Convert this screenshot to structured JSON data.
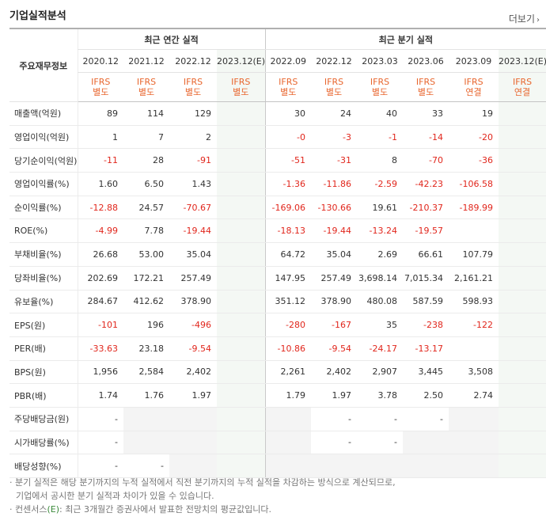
{
  "section_title": "기업실적분석",
  "more_label": "더보기",
  "more_arrow": "›",
  "header": {
    "row_label": "주요재무정보",
    "annual_group": "최근 연간 실적",
    "quarter_group": "최근 분기 실적",
    "periods": [
      "2020.12",
      "2021.12",
      "2022.12",
      "2023.12(E)",
      "2022.09",
      "2022.12",
      "2023.03",
      "2023.06",
      "2023.09",
      "2023.12(E)"
    ],
    "standards_top": [
      "IFRS",
      "IFRS",
      "IFRS",
      "IFRS",
      "IFRS",
      "IFRS",
      "IFRS",
      "IFRS",
      "IFRS",
      "IFRS"
    ],
    "standards_bottom": [
      "별도",
      "별도",
      "별도",
      "별도",
      "별도",
      "별도",
      "별도",
      "별도",
      "연결",
      "연결"
    ]
  },
  "rows": [
    {
      "label": "매출액(억원)",
      "values": [
        "89",
        "114",
        "129",
        "",
        "30",
        "24",
        "40",
        "33",
        "19",
        ""
      ]
    },
    {
      "label": "영업이익(억원)",
      "values": [
        "1",
        "7",
        "2",
        "",
        "-0",
        "-3",
        "-1",
        "-14",
        "-20",
        ""
      ]
    },
    {
      "label": "당기순이익(억원)",
      "values": [
        "-11",
        "28",
        "-91",
        "",
        "-51",
        "-31",
        "8",
        "-70",
        "-36",
        ""
      ]
    },
    {
      "label": "영업이익률(%)",
      "values": [
        "1.60",
        "6.50",
        "1.43",
        "",
        "-1.36",
        "-11.86",
        "-2.59",
        "-42.23",
        "-106.58",
        ""
      ]
    },
    {
      "label": "순이익률(%)",
      "values": [
        "-12.88",
        "24.57",
        "-70.67",
        "",
        "-169.06",
        "-130.66",
        "19.61",
        "-210.37",
        "-189.99",
        ""
      ]
    },
    {
      "label": "ROE(%)",
      "values": [
        "-4.99",
        "7.78",
        "-19.44",
        "",
        "-18.13",
        "-19.44",
        "-13.24",
        "-19.57",
        "",
        ""
      ]
    },
    {
      "label": "부채비율(%)",
      "values": [
        "26.68",
        "53.00",
        "35.04",
        "",
        "64.72",
        "35.04",
        "2.69",
        "66.61",
        "107.79",
        ""
      ]
    },
    {
      "label": "당좌비율(%)",
      "values": [
        "202.69",
        "172.21",
        "257.49",
        "",
        "147.95",
        "257.49",
        "3,698.14",
        "7,015.34",
        "2,161.21",
        ""
      ]
    },
    {
      "label": "유보율(%)",
      "values": [
        "284.67",
        "412.62",
        "378.90",
        "",
        "351.12",
        "378.90",
        "480.08",
        "587.59",
        "598.93",
        ""
      ]
    },
    {
      "label": "EPS(원)",
      "values": [
        "-101",
        "196",
        "-496",
        "",
        "-280",
        "-167",
        "35",
        "-238",
        "-122",
        ""
      ]
    },
    {
      "label": "PER(배)",
      "values": [
        "-33.63",
        "23.18",
        "-9.54",
        "",
        "-10.86",
        "-9.54",
        "-24.17",
        "-13.17",
        "",
        ""
      ]
    },
    {
      "label": "BPS(원)",
      "values": [
        "1,956",
        "2,584",
        "2,402",
        "",
        "2,261",
        "2,402",
        "2,907",
        "3,445",
        "3,508",
        ""
      ]
    },
    {
      "label": "PBR(배)",
      "values": [
        "1.74",
        "1.76",
        "1.97",
        "",
        "1.79",
        "1.97",
        "3.78",
        "2.50",
        "2.74",
        ""
      ]
    },
    {
      "label": "주당배당금(원)",
      "values": [
        "-",
        "",
        "",
        "",
        "",
        "-",
        "-",
        "-",
        "",
        ""
      ]
    },
    {
      "label": "시가배당률(%)",
      "values": [
        "-",
        "",
        "",
        "",
        "",
        "-",
        "-",
        "",
        "",
        ""
      ]
    },
    {
      "label": "배당성향(%)",
      "values": [
        "-",
        "-",
        "",
        "",
        "",
        "",
        "",
        "",
        "",
        ""
      ]
    }
  ],
  "notes": {
    "line1": "분기 실적은 해당 분기까지의 누적 실적에서 직전 분기까지의 누적 실적을 차감하는 방식으로 계산되므로,",
    "line2": "기업에서 공시한 분기 실적과 차이가 있을 수 있습니다.",
    "line3_prefix": "컨센서스",
    "line3_e": "(E)",
    "line3_rest": ": 최근 3개월간 증권사에서 발표한 전망치의 평균값입니다."
  },
  "colors": {
    "negative": "#e1261c",
    "ifrs": "#e8662e",
    "estimate_bg": "#f4f8f4",
    "empty_bg": "#f4f4f4"
  }
}
